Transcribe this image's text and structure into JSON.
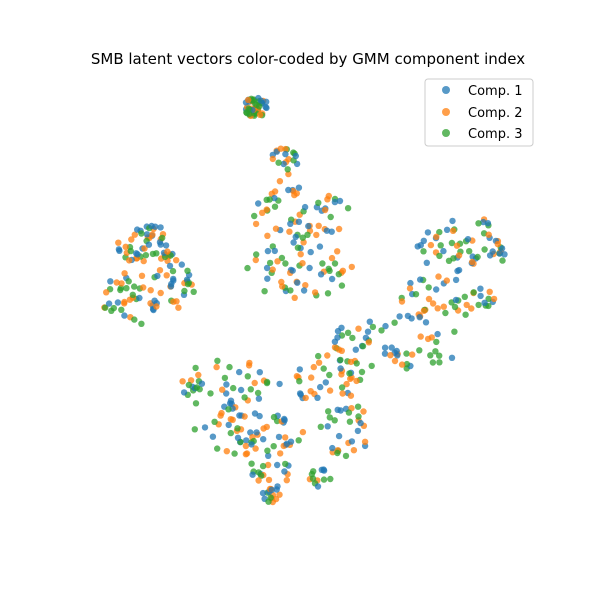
{
  "chart_data": {
    "type": "scatter",
    "title": "SMB latent vectors color-coded by GMM component index",
    "xlabel": "",
    "ylabel": "",
    "axes_visible": false,
    "grid": false,
    "legend_position": "top-right",
    "series": [
      {
        "name": "Comp. 1",
        "color": "#1f77b4",
        "points": []
      },
      {
        "name": "Comp. 2",
        "color": "#ff7f0e",
        "points": []
      },
      {
        "name": "Comp. 3",
        "color": "#2ca02c",
        "points": []
      }
    ],
    "clusters": [
      {
        "cx": 256,
        "cy": 107,
        "rx": 12,
        "ry": 10,
        "n": 45
      },
      {
        "cx": 150,
        "cy": 245,
        "rx": 35,
        "ry": 20,
        "n": 55
      },
      {
        "cx": 130,
        "cy": 300,
        "rx": 28,
        "ry": 28,
        "n": 40
      },
      {
        "cx": 175,
        "cy": 285,
        "rx": 25,
        "ry": 25,
        "n": 30
      },
      {
        "cx": 285,
        "cy": 165,
        "rx": 15,
        "ry": 18,
        "n": 20
      },
      {
        "cx": 300,
        "cy": 215,
        "rx": 50,
        "ry": 28,
        "n": 55
      },
      {
        "cx": 300,
        "cy": 270,
        "rx": 55,
        "ry": 28,
        "n": 55
      },
      {
        "cx": 465,
        "cy": 245,
        "rx": 50,
        "ry": 28,
        "n": 60
      },
      {
        "cx": 440,
        "cy": 300,
        "rx": 55,
        "ry": 25,
        "n": 50
      },
      {
        "cx": 395,
        "cy": 345,
        "rx": 75,
        "ry": 25,
        "n": 55
      },
      {
        "cx": 230,
        "cy": 385,
        "rx": 50,
        "ry": 25,
        "n": 45
      },
      {
        "cx": 330,
        "cy": 380,
        "rx": 40,
        "ry": 25,
        "n": 40
      },
      {
        "cx": 245,
        "cy": 430,
        "rx": 60,
        "ry": 25,
        "n": 60
      },
      {
        "cx": 345,
        "cy": 430,
        "rx": 25,
        "ry": 28,
        "n": 30
      },
      {
        "cx": 270,
        "cy": 470,
        "rx": 20,
        "ry": 20,
        "n": 20
      },
      {
        "cx": 270,
        "cy": 495,
        "rx": 10,
        "ry": 8,
        "n": 15
      },
      {
        "cx": 320,
        "cy": 478,
        "rx": 12,
        "ry": 10,
        "n": 12
      }
    ]
  }
}
